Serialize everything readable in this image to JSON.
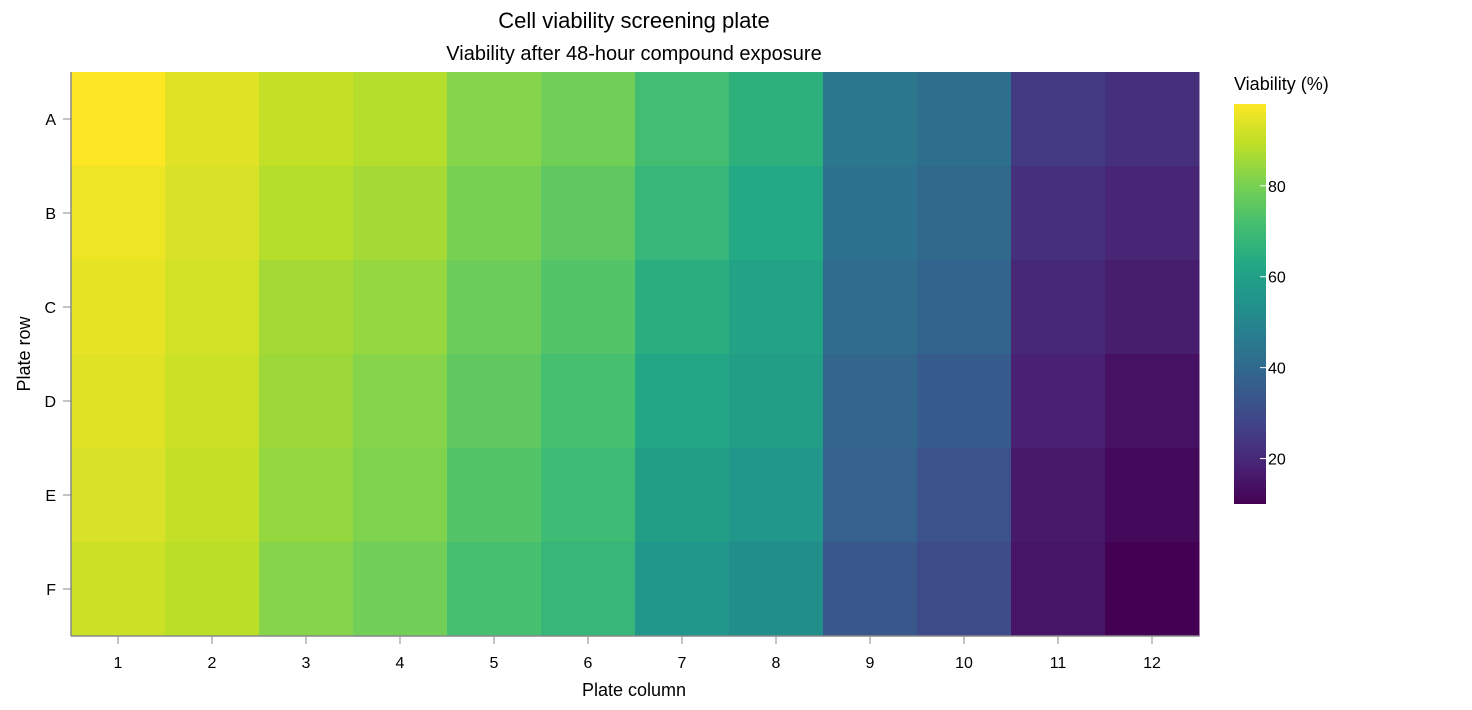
{
  "chart_data": {
    "type": "heatmap",
    "title": "Cell viability screening plate",
    "subtitle": "Viability after 48-hour compound exposure",
    "xlabel": "Plate column",
    "ylabel": "Plate row",
    "columns": [
      "1",
      "2",
      "3",
      "4",
      "5",
      "6",
      "7",
      "8",
      "9",
      "10",
      "11",
      "12"
    ],
    "rows": [
      "A",
      "B",
      "C",
      "D",
      "E",
      "F"
    ],
    "values": [
      [
        98,
        94,
        90,
        88,
        82,
        79,
        71,
        66,
        45,
        42,
        25,
        22
      ],
      [
        96,
        93,
        88,
        86,
        80,
        76,
        68,
        63,
        43,
        40,
        22,
        19
      ],
      [
        95,
        92,
        86,
        84,
        78,
        74,
        65,
        61,
        41,
        38,
        20,
        17
      ],
      [
        94,
        91,
        85,
        82,
        76,
        72,
        62,
        59,
        39,
        35,
        18,
        14
      ],
      [
        93,
        90,
        84,
        81,
        74,
        70,
        59,
        56,
        37,
        32,
        16,
        12
      ],
      [
        91,
        89,
        82,
        79,
        72,
        68,
        56,
        53,
        34,
        30,
        15,
        10
      ]
    ],
    "color_scale": {
      "name": "viridis",
      "domain": [
        10,
        98
      ],
      "legend_title": "Viability (%)",
      "legend_ticks": [
        20,
        40,
        60,
        80
      ]
    },
    "axis_color": "#888888"
  }
}
